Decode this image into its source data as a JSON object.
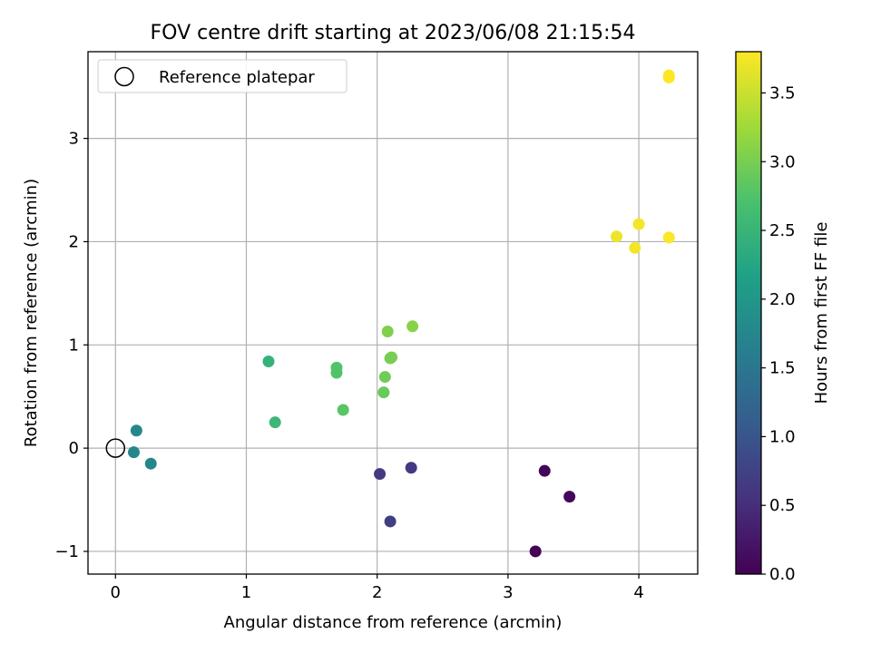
{
  "chart_data": {
    "type": "scatter",
    "title": "FOV centre drift starting at 2023/06/08 21:15:54",
    "xlabel": "Angular distance from reference (arcmin)",
    "ylabel": "Rotation from reference (arcmin)",
    "xlim": [
      -0.21,
      4.45
    ],
    "ylim": [
      -1.22,
      3.84
    ],
    "xticks": [
      0,
      1,
      2,
      3,
      4
    ],
    "xtick_labels": [
      "0",
      "1",
      "2",
      "3",
      "4"
    ],
    "yticks": [
      -1,
      0,
      1,
      2,
      3
    ],
    "ytick_labels": [
      "−1",
      "0",
      "1",
      "2",
      "3"
    ],
    "grid": true,
    "legend": {
      "position": "top-left",
      "entries": [
        "Reference platepar"
      ]
    },
    "reference_point": {
      "x": 0,
      "y": 0,
      "label": "Reference platepar"
    },
    "colorbar": {
      "label": "Hours from first FF file",
      "range": [
        0.0,
        3.8
      ],
      "colormap": "viridis",
      "ticks": [
        0.0,
        0.5,
        1.0,
        1.5,
        2.0,
        2.5,
        3.0,
        3.5
      ],
      "tick_labels": [
        "0.0",
        "0.5",
        "1.0",
        "1.5",
        "2.0",
        "2.5",
        "3.0",
        "3.5"
      ]
    },
    "points": [
      {
        "x": 3.21,
        "y": -1.0,
        "hours": 0.02
      },
      {
        "x": 3.28,
        "y": -0.22,
        "hours": 0.05
      },
      {
        "x": 3.47,
        "y": -0.47,
        "hours": 0.08
      },
      {
        "x": 2.02,
        "y": -0.25,
        "hours": 0.65
      },
      {
        "x": 2.26,
        "y": -0.19,
        "hours": 0.65
      },
      {
        "x": 2.1,
        "y": -0.71,
        "hours": 0.7
      },
      {
        "x": 0.16,
        "y": 0.17,
        "hours": 1.75
      },
      {
        "x": 0.14,
        "y": -0.04,
        "hours": 1.75
      },
      {
        "x": 0.27,
        "y": -0.15,
        "hours": 1.75
      },
      {
        "x": 1.17,
        "y": 0.84,
        "hours": 2.45
      },
      {
        "x": 1.22,
        "y": 0.25,
        "hours": 2.55
      },
      {
        "x": 1.69,
        "y": 0.78,
        "hours": 2.75
      },
      {
        "x": 1.69,
        "y": 0.73,
        "hours": 2.75
      },
      {
        "x": 1.74,
        "y": 0.37,
        "hours": 2.8
      },
      {
        "x": 2.05,
        "y": 0.54,
        "hours": 2.9
      },
      {
        "x": 2.06,
        "y": 0.69,
        "hours": 2.95
      },
      {
        "x": 2.11,
        "y": 0.88,
        "hours": 3.0
      },
      {
        "x": 2.1,
        "y": 0.87,
        "hours": 3.0
      },
      {
        "x": 2.08,
        "y": 1.13,
        "hours": 3.05
      },
      {
        "x": 2.27,
        "y": 1.18,
        "hours": 3.1
      },
      {
        "x": 3.83,
        "y": 2.05,
        "hours": 3.7
      },
      {
        "x": 3.97,
        "y": 1.94,
        "hours": 3.75
      },
      {
        "x": 4.0,
        "y": 2.17,
        "hours": 3.75
      },
      {
        "x": 4.23,
        "y": 2.04,
        "hours": 3.78
      },
      {
        "x": 4.23,
        "y": 3.59,
        "hours": 3.8
      },
      {
        "x": 4.23,
        "y": 3.61,
        "hours": 3.8
      }
    ]
  }
}
